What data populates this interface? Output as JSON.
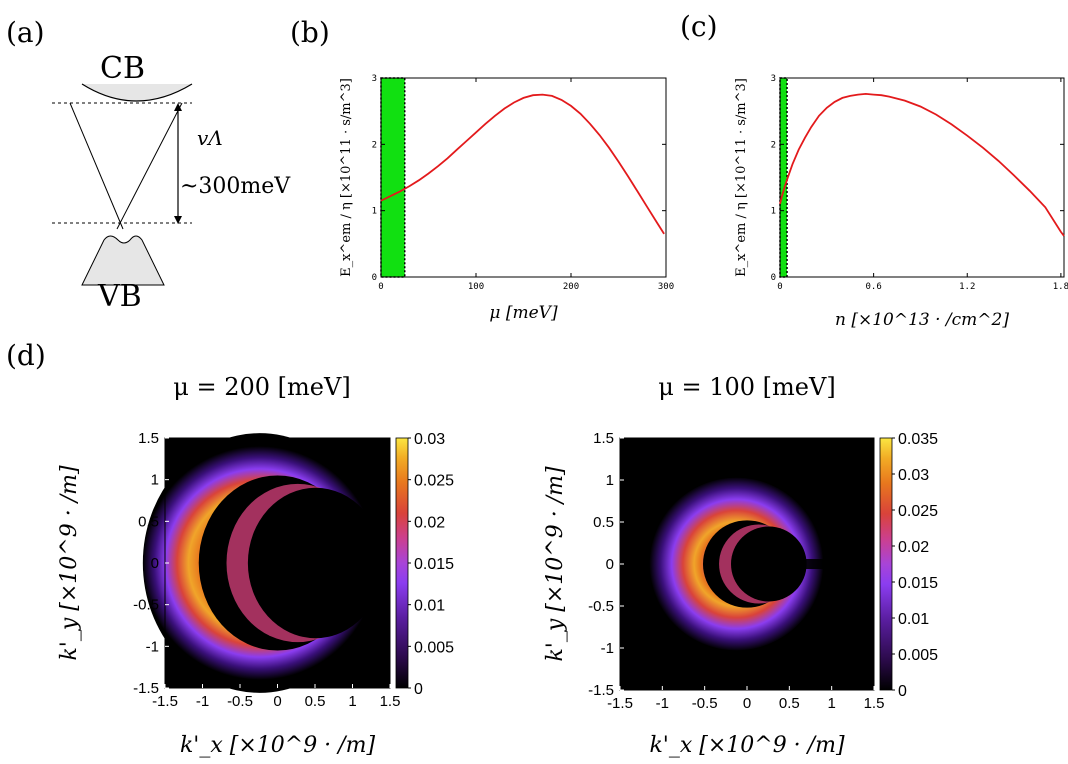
{
  "panel_labels": {
    "a": "(a)",
    "b": "(b)",
    "c": "(c)",
    "d": "(d)"
  },
  "colors": {
    "curve": "#e31a1c",
    "green": "#11e011",
    "map_black": "#000000",
    "map_gray": "#e6e6e6"
  },
  "panel_a": {
    "cb_label": "CB",
    "vb_label": "VB",
    "cutoff_label": "vΛ",
    "gap_label": "~300meV"
  },
  "chart_data": [
    {
      "id": "b",
      "type": "line",
      "title": "",
      "xlabel": "μ [meV]",
      "ylabel": "E_x^em / η [×10^11 · s/m^3]",
      "xlim": [
        0,
        300
      ],
      "ylim": [
        0,
        3
      ],
      "xticks": [
        0,
        100,
        200,
        300
      ],
      "xtick_labels": [
        "0",
        "100",
        "200",
        "300"
      ],
      "yticks": [
        0,
        1,
        2,
        3
      ],
      "ytick_labels": [
        "0",
        "1",
        "2",
        "3"
      ],
      "shaded_region": {
        "x0": 0,
        "x1": 25,
        "color": "#11e011"
      },
      "series": [
        {
          "x": [
            0,
            10,
            20,
            30,
            40,
            50,
            60,
            70,
            80,
            90,
            100,
            110,
            120,
            130,
            140,
            150,
            160,
            170,
            180,
            190,
            200,
            210,
            220,
            230,
            240,
            250,
            260,
            270,
            280,
            290,
            298
          ],
          "y": [
            1.15,
            1.22,
            1.29,
            1.37,
            1.46,
            1.56,
            1.67,
            1.79,
            1.92,
            2.05,
            2.18,
            2.31,
            2.43,
            2.54,
            2.63,
            2.7,
            2.74,
            2.75,
            2.73,
            2.67,
            2.58,
            2.46,
            2.31,
            2.14,
            1.95,
            1.74,
            1.52,
            1.29,
            1.06,
            0.83,
            0.65
          ]
        }
      ]
    },
    {
      "id": "c",
      "type": "line",
      "title": "",
      "xlabel": "n [×10^13 · /cm^2]",
      "ylabel": "E_x^em / η [×10^11 · s/m^3]",
      "xlim": [
        0,
        1.82
      ],
      "ylim": [
        0,
        3
      ],
      "xticks": [
        0,
        0.6,
        1.2,
        1.8
      ],
      "xtick_labels": [
        "0",
        "0.6",
        "1.2",
        "1.8"
      ],
      "yticks": [
        0,
        1,
        2,
        3
      ],
      "ytick_labels": [
        "0",
        "1",
        "2",
        "3"
      ],
      "shaded_region": {
        "x0": 0,
        "x1": 0.045,
        "color": "#11e011"
      },
      "series": [
        {
          "x": [
            0,
            0.01,
            0.03,
            0.05,
            0.08,
            0.12,
            0.16,
            0.2,
            0.25,
            0.3,
            0.35,
            0.4,
            0.45,
            0.5,
            0.55,
            0.6,
            0.65,
            0.7,
            0.8,
            0.9,
            1.0,
            1.1,
            1.2,
            1.3,
            1.4,
            1.5,
            1.6,
            1.7,
            1.8,
            1.82
          ],
          "y": [
            1.1,
            1.2,
            1.36,
            1.5,
            1.7,
            1.92,
            2.1,
            2.26,
            2.43,
            2.55,
            2.64,
            2.7,
            2.73,
            2.75,
            2.76,
            2.75,
            2.74,
            2.72,
            2.66,
            2.57,
            2.45,
            2.3,
            2.13,
            1.95,
            1.75,
            1.53,
            1.3,
            1.05,
            0.68,
            0.62
          ]
        }
      ]
    },
    {
      "id": "d-left",
      "type": "heatmap",
      "title": "μ = 200 [meV]",
      "xlabel": "k'_x [×10^9 · /m]",
      "ylabel": "k'_y [×10^9 · /m]",
      "xlim": [
        -1.5,
        1.5
      ],
      "ylim": [
        -1.5,
        1.5
      ],
      "ticks": [
        -1.5,
        -1,
        -0.5,
        0,
        0.5,
        1,
        1.5
      ],
      "tick_labels": [
        "-1.5",
        "-1",
        "-0.5",
        "0",
        "0.5",
        "1",
        "1.5"
      ],
      "colorbar": {
        "min": 0,
        "max": 0.03,
        "ticks": [
          0,
          0.005,
          0.01,
          0.015,
          0.02,
          0.025,
          0.03
        ],
        "tick_labels": [
          "0",
          "0.005",
          "0.01",
          "0.015",
          "0.02",
          "0.025",
          "0.03"
        ]
      },
      "fermi_circle": {
        "cx": 0,
        "cy": 0,
        "r": 1.05
      },
      "black_inner_disk": {
        "cx": 0.27,
        "cy": 0,
        "r": 0.95
      },
      "ring_peak_radius": 0.95,
      "ring_width": 0.38
    },
    {
      "id": "d-right",
      "type": "heatmap",
      "title": "μ = 100 [meV]",
      "xlabel": "k'_x [×10^9 · /m]",
      "ylabel": "k'_y [×10^9 · /m]",
      "xlim": [
        -1.5,
        1.5
      ],
      "ylim": [
        -1.5,
        1.5
      ],
      "ticks": [
        -1.5,
        -1,
        -0.5,
        0,
        0.5,
        1,
        1.5
      ],
      "tick_labels": [
        "-1.5",
        "-1",
        "-0.5",
        "0",
        "0.5",
        "1",
        "1.5"
      ],
      "colorbar": {
        "min": 0,
        "max": 0.035,
        "ticks": [
          0,
          0.005,
          0.01,
          0.015,
          0.02,
          0.025,
          0.03,
          0.035
        ],
        "tick_labels": [
          "0",
          "0.005",
          "0.01",
          "0.015",
          "0.02",
          "0.025",
          "0.03",
          "0.035"
        ]
      },
      "fermi_circle": {
        "cx": 0,
        "cy": 0,
        "r": 0.52
      },
      "black_inner_disk": {
        "cx": 0.14,
        "cy": 0,
        "r": 0.47
      },
      "ring_peak_radius": 0.5,
      "ring_width": 0.33
    }
  ]
}
